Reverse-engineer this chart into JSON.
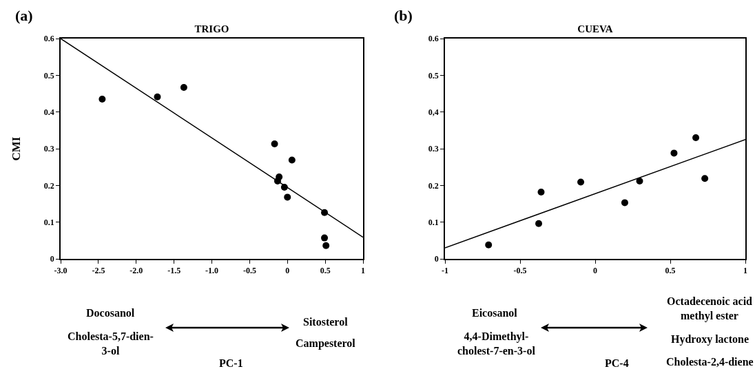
{
  "chart_data": [
    {
      "type": "scatter",
      "title": "TRIGO",
      "ylabel": "CMI",
      "xlabel": "PC-1",
      "annotations": [
        "(a)",
        "Docosanol",
        "Cholesta-5,7-dien-\n3-ol",
        "Sitosterol",
        "Campesterol"
      ],
      "xlim": [
        -3,
        1
      ],
      "xticks": [
        {
          "value": -3,
          "label": "-3.0"
        },
        {
          "value": -2.5,
          "label": "-2.5"
        },
        {
          "value": -2,
          "label": "-2.0"
        },
        {
          "value": -1.5,
          "label": "-1.5"
        },
        {
          "value": -1,
          "label": "-1.0"
        },
        -0.5,
        0,
        0.5,
        1
      ],
      "ylim": [
        0,
        0.6
      ],
      "yticks": [
        0,
        0.1,
        0.2,
        0.3,
        0.4,
        0.5,
        0.6
      ],
      "grid": false,
      "legend": false,
      "series": [
        {
          "marker": "circle",
          "color": "#000000",
          "x": [
            -2.45,
            -1.72,
            -1.37,
            -0.17,
            0.06,
            -0.11,
            -0.13,
            -0.04,
            0.0,
            0.49,
            0.49,
            0.51
          ],
          "values": [
            0.435,
            0.441,
            0.467,
            0.313,
            0.269,
            0.223,
            0.212,
            0.195,
            0.168,
            0.126,
            0.057,
            0.036
          ]
        },
        {
          "type": "line",
          "marker": "none",
          "color": "#000000",
          "x": [
            -3,
            1
          ],
          "values": [
            0.6,
            0.059
          ]
        }
      ]
    },
    {
      "type": "scatter",
      "title": "CUEVA",
      "xlabel": "PC-4",
      "annotations": [
        "(b)",
        "Eicosanol",
        "4,4-Dimethyl-\ncholest-7-en-3-ol",
        "Octadecenoic acid\nmethyl ester",
        "Hydroxy lactone",
        "Cholesta-2,4-diene"
      ],
      "xlim": [
        -1,
        1
      ],
      "xticks": [
        -1,
        -0.5,
        0,
        0.5,
        1
      ],
      "ylim": [
        0,
        0.6
      ],
      "yticks": [
        0,
        0.1,
        0.2,
        0.3,
        {
          "value": 0.4,
          "label": "0,4"
        },
        0.5,
        0.6
      ],
      "grid": false,
      "legend": false,
      "series": [
        {
          "marker": "circle",
          "color": "#000000",
          "x": [
            -0.71,
            -0.376,
            -0.36,
            -0.096,
            0.197,
            0.296,
            0.525,
            0.67,
            0.73
          ],
          "values": [
            0.038,
            0.096,
            0.182,
            0.209,
            0.153,
            0.212,
            0.288,
            0.33,
            0.219
          ]
        },
        {
          "type": "line",
          "marker": "none",
          "color": "#000000",
          "x": [
            -1,
            1
          ],
          "values": [
            0.03,
            0.325
          ]
        }
      ]
    }
  ]
}
